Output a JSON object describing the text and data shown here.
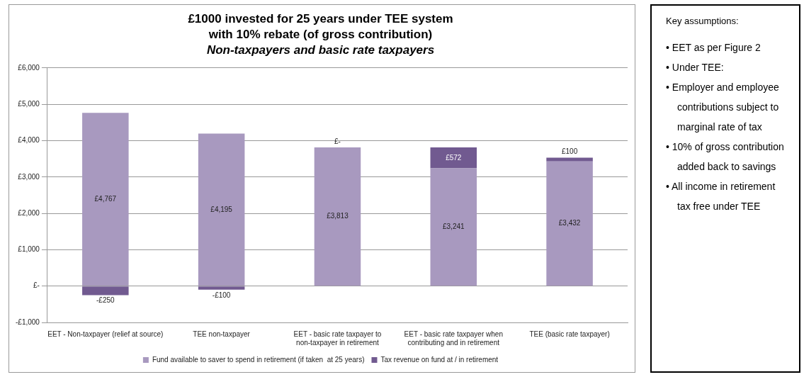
{
  "chart_data": [
    {
      "type": "bar",
      "title": "£1000 invested for 25 years under TEE system\nwith 10% rebate (of gross contribution)",
      "subtitle": "Non-taxpayers and basic rate taxpayers",
      "categories": [
        "EET - Non-taxpayer (relief at source)",
        "TEE non-taxpayer",
        "EET - basic rate taxpayer to non-taxpayer in retirement",
        "EET - basic rate taxpayer when contributing and in retirement",
        "TEE (basic rate taxpayer)"
      ],
      "stacked": true,
      "series": [
        {
          "name": "Fund available to saver to spend in retirement (if taken  at 25 years)",
          "color": "#a899bf",
          "values": [
            4767,
            4195,
            3813,
            3241,
            3432
          ],
          "value_labels": [
            "£4,767",
            "£4,195",
            "£3,813",
            "£3,241",
            "£3,432"
          ]
        },
        {
          "name": "Tax revenue on fund at / in retirement",
          "color": "#715a90",
          "values": [
            -250,
            -100,
            0,
            572,
            100
          ],
          "value_labels": [
            "-£250",
            "-£100",
            "£-",
            "£572",
            "£100"
          ]
        }
      ],
      "ylim": [
        -1000,
        6000
      ],
      "yticks": [
        {
          "value": -1000,
          "label": "-£1,000"
        },
        {
          "value": 0,
          "label": "£-"
        },
        {
          "value": 1000,
          "label": "£1,000"
        },
        {
          "value": 2000,
          "label": "£2,000"
        },
        {
          "value": 3000,
          "label": "£3,000"
        },
        {
          "value": 4000,
          "label": "£4,000"
        },
        {
          "value": 5000,
          "label": "£5,000"
        },
        {
          "value": 6000,
          "label": "£6,000"
        }
      ],
      "grid": "y",
      "legend": "bottom"
    },
    {
      "type": "other",
      "title": "Key assumptions:",
      "annotations": [
        "• EET as per Figure 2",
        "• Under TEE:",
        "• Employer and employee contributions subject to marginal rate of tax",
        "• 10% of gross contribution added back to savings",
        "• All income in retirement tax free under TEE"
      ]
    }
  ]
}
